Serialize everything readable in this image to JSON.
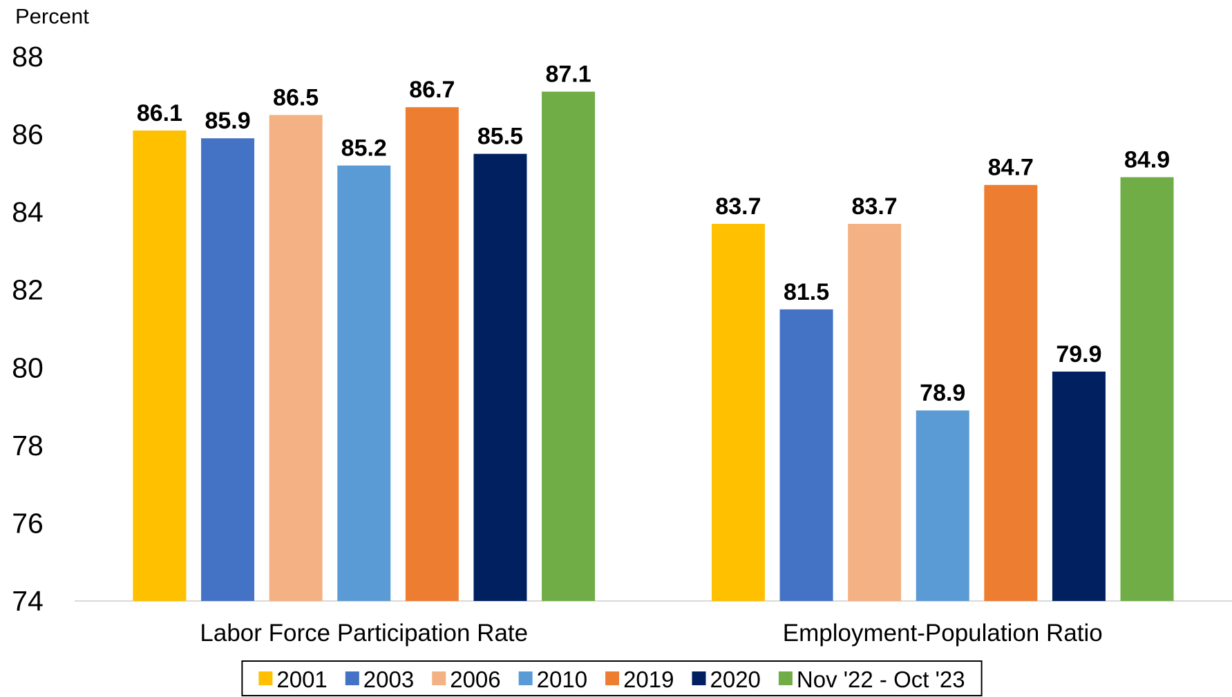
{
  "chart_data": {
    "type": "bar",
    "y_label": "Percent",
    "categories": [
      "Labor Force Participation Rate",
      "Employment-Population Ratio"
    ],
    "series": [
      {
        "name": "2001",
        "color": "#ffc000",
        "values": [
          86.1,
          83.7
        ]
      },
      {
        "name": "2003",
        "color": "#4472c4",
        "values": [
          85.9,
          81.5
        ]
      },
      {
        "name": "2006",
        "color": "#f4b183",
        "values": [
          86.5,
          83.7
        ]
      },
      {
        "name": "2010",
        "color": "#5b9bd5",
        "values": [
          85.2,
          78.9
        ]
      },
      {
        "name": "2019",
        "color": "#ed7d31",
        "values": [
          86.7,
          84.7
        ]
      },
      {
        "name": "2020",
        "color": "#002060",
        "values": [
          85.5,
          79.9
        ]
      },
      {
        "name": "Nov '22 - Oct '23",
        "color": "#70ad47",
        "values": [
          87.1,
          84.9
        ]
      }
    ],
    "ylim": [
      74,
      88
    ],
    "yticks": [
      74,
      76,
      78,
      80,
      82,
      84,
      86,
      88
    ],
    "grid": false,
    "legend": "bottom"
  }
}
